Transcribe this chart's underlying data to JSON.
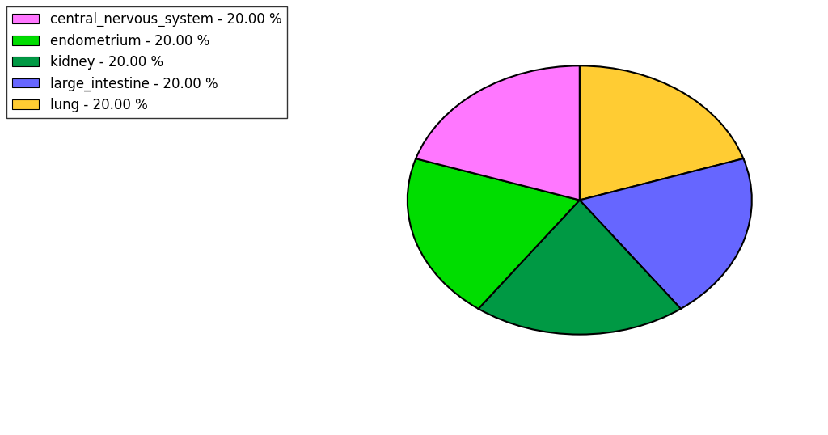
{
  "labels": [
    "central_nervous_system",
    "endometrium",
    "kidney",
    "large_intestine",
    "lung"
  ],
  "values": [
    20.0,
    20.0,
    20.0,
    20.0,
    20.0
  ],
  "colors": [
    "#FF77FF",
    "#00DD00",
    "#009944",
    "#6666FF",
    "#FFCC33"
  ],
  "legend_labels": [
    "central_nervous_system - 20.00 %",
    "endometrium - 20.00 %",
    "kidney - 20.00 %",
    "large_intestine - 20.00 %",
    "lung - 20.00 %"
  ],
  "startangle": 90,
  "figsize": [
    10.24,
    5.38
  ],
  "dpi": 100,
  "legend_fontsize": 12
}
